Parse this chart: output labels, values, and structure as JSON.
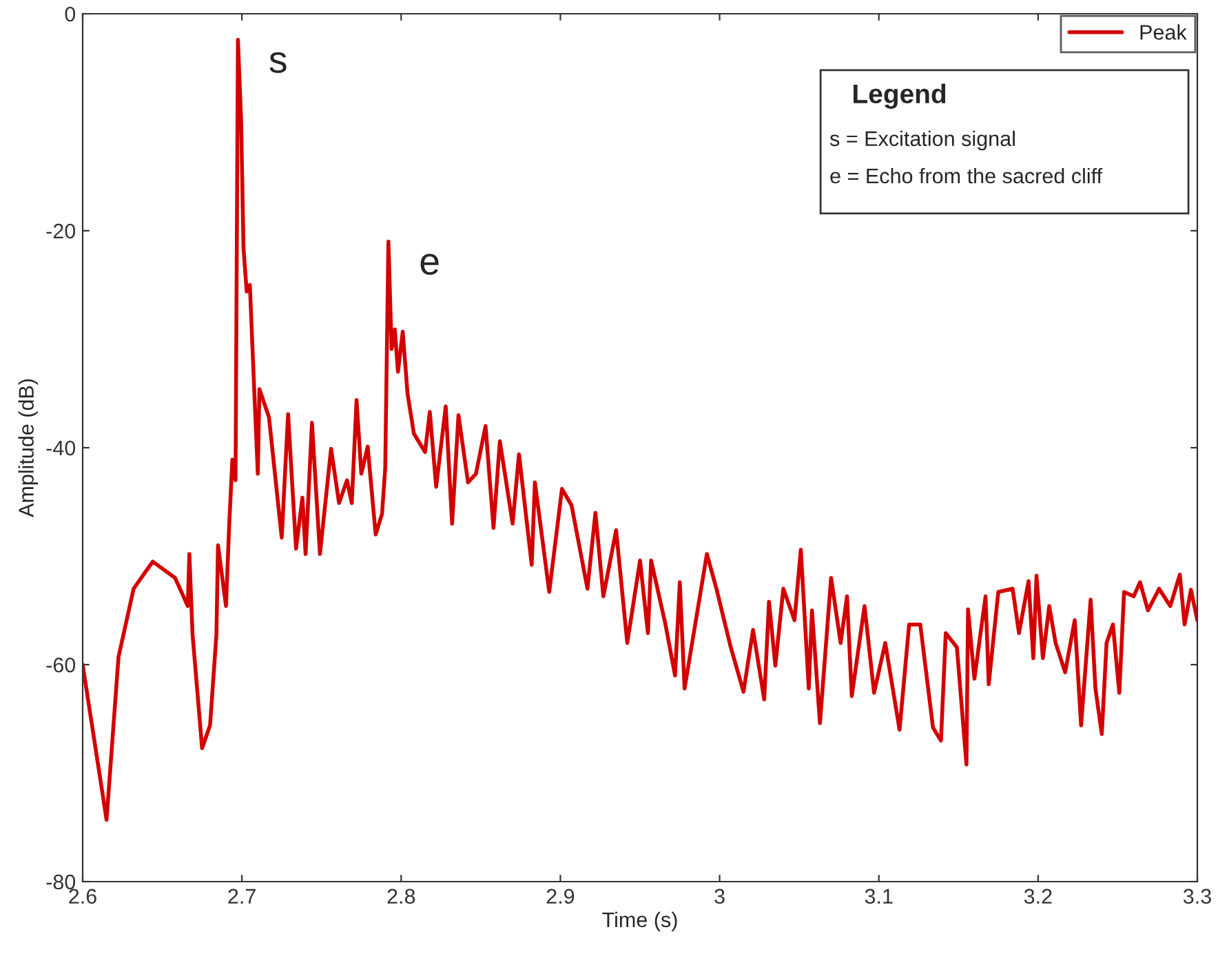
{
  "chart_data": {
    "type": "line",
    "xlabel": "Time (s)",
    "ylabel": "Amplitude (dB)",
    "xlim": [
      2.6,
      3.3
    ],
    "xticks": [
      2.6,
      2.7,
      2.8,
      2.9,
      3,
      3.1,
      3.2,
      3.3
    ],
    "ylim": [
      -80,
      0
    ],
    "yticks": [
      -80,
      -60,
      -40,
      -20,
      0
    ],
    "grid": false,
    "legend": "top right",
    "line_style": "solid",
    "marker": "none",
    "series": [
      {
        "name": "Peak",
        "color": "#d40000",
        "x": [
          2.6,
          2.615,
          2.6225,
          2.632,
          2.644,
          2.658,
          2.666,
          2.667,
          2.669,
          2.675,
          2.68,
          2.684,
          2.685,
          2.69,
          2.692,
          2.694,
          2.696,
          2.6975,
          2.6995,
          2.701,
          2.703,
          2.705,
          2.708,
          2.71,
          2.711,
          2.717,
          2.725,
          2.729,
          2.734,
          2.738,
          2.74,
          2.744,
          2.749,
          2.756,
          2.761,
          2.766,
          2.769,
          2.772,
          2.775,
          2.779,
          2.784,
          2.788,
          2.79,
          2.792,
          2.794,
          2.796,
          2.798,
          2.801,
          2.804,
          2.808,
          2.815,
          2.818,
          2.822,
          2.828,
          2.832,
          2.836,
          2.842,
          2.847,
          2.853,
          2.858,
          2.862,
          2.87,
          2.874,
          2.882,
          2.884,
          2.893,
          2.901,
          2.907,
          2.917,
          2.922,
          2.927,
          2.935,
          2.942,
          2.95,
          2.955,
          2.957,
          2.966,
          2.972,
          2.975,
          2.978,
          2.992,
          2.998,
          3.007,
          3.015,
          3.021,
          3.028,
          3.031,
          3.035,
          3.04,
          3.047,
          3.051,
          3.056,
          3.058,
          3.063,
          3.07,
          3.076,
          3.08,
          3.083,
          3.091,
          3.097,
          3.104,
          3.113,
          3.119,
          3.126,
          3.134,
          3.139,
          3.142,
          3.149,
          3.155,
          3.156,
          3.16,
          3.167,
          3.169,
          3.175,
          3.184,
          3.188,
          3.194,
          3.197,
          3.199,
          3.203,
          3.207,
          3.211,
          3.217,
          3.223,
          3.227,
          3.233,
          3.236,
          3.24,
          3.243,
          3.247,
          3.251,
          3.254,
          3.26,
          3.264,
          3.269,
          3.276,
          3.283,
          3.289,
          3.292,
          3.296,
          3.3
        ],
        "values": [
          -60,
          -74.3,
          -59.3,
          -53,
          -50.5,
          -52,
          -54.6,
          -49.8,
          -57.2,
          -67.7,
          -65.6,
          -57.2,
          -49,
          -54.6,
          -47.2,
          -41.1,
          -43,
          -2.4,
          -9.8,
          -21.6,
          -25.6,
          -25,
          -35.6,
          -42.4,
          -34.6,
          -37.2,
          -48.3,
          -36.9,
          -49.3,
          -44.6,
          -49.8,
          -37.7,
          -49.8,
          -40.1,
          -45.1,
          -43,
          -45.1,
          -35.6,
          -42.4,
          -39.9,
          -48,
          -46.1,
          -41.9,
          -21,
          -30.9,
          -29.1,
          -33,
          -29.3,
          -35,
          -38.7,
          -40.4,
          -36.7,
          -43.6,
          -36.2,
          -47,
          -37,
          -43.2,
          -42.4,
          -38,
          -47.4,
          -39.4,
          -47,
          -40.6,
          -50.8,
          -43.2,
          -53.3,
          -43.8,
          -45.3,
          -53,
          -46,
          -53.7,
          -47.6,
          -58,
          -50.4,
          -57.1,
          -50.4,
          -56.3,
          -61,
          -52.4,
          -62.2,
          -49.8,
          -53,
          -58.4,
          -62.5,
          -56.8,
          -63.2,
          -54.2,
          -60.1,
          -53,
          -55.9,
          -49.4,
          -62.2,
          -55,
          -65.4,
          -52,
          -58,
          -53.7,
          -62.9,
          -54.6,
          -62.6,
          -58,
          -66,
          -56.3,
          -56.3,
          -65.8,
          -67,
          -57.1,
          -58.4,
          -69.2,
          -54.9,
          -61.3,
          -53.7,
          -61.8,
          -53.3,
          -53,
          -57.1,
          -52.3,
          -59.4,
          -51.8,
          -59.4,
          -54.6,
          -58,
          -60.7,
          -55.9,
          -65.6,
          -54,
          -62.2,
          -66.4,
          -58,
          -56.3,
          -62.6,
          -53.3,
          -53.7,
          -52.4,
          -55,
          -53,
          -54.6,
          -51.7,
          -56.3,
          -53.1,
          -55.9
        ]
      }
    ],
    "annotations": [
      {
        "text": "s",
        "x": 2.6975,
        "y": -2.4
      },
      {
        "text": "e",
        "x": 2.792,
        "y": -21
      },
      "Legend",
      "s = Excitation signal",
      "e = Echo from the sacred cliff"
    ]
  }
}
